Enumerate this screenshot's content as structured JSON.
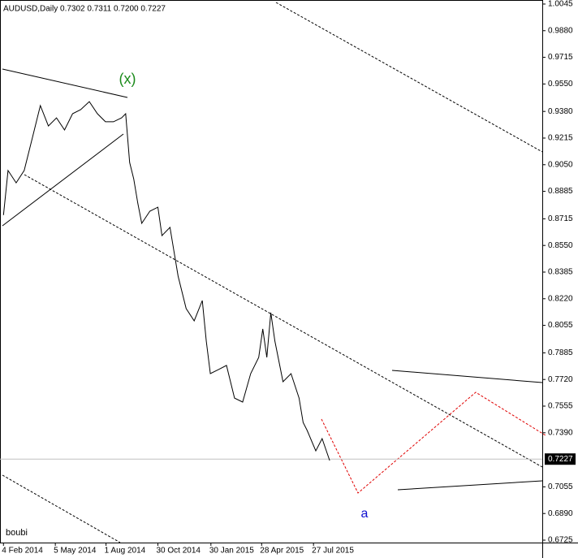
{
  "chart_data": {
    "type": "line",
    "title": "AUDUSD,Daily  0.7302 0.7311 0.7200 0.7227",
    "x": [
      "2014-02-04",
      "2014-02-12",
      "2014-02-26",
      "2014-03-12",
      "2014-03-26",
      "2014-04-09",
      "2014-04-23",
      "2014-05-07",
      "2014-05-21",
      "2014-06-04",
      "2014-06-18",
      "2014-07-03",
      "2014-07-17",
      "2014-07-31",
      "2014-08-14",
      "2014-08-28",
      "2014-09-04",
      "2014-09-11",
      "2014-09-18",
      "2014-09-25",
      "2014-10-02",
      "2014-10-16",
      "2014-10-30",
      "2014-11-06",
      "2014-11-20",
      "2014-11-27",
      "2014-12-04",
      "2014-12-18",
      "2015-01-01",
      "2015-01-15",
      "2015-01-22",
      "2015-01-29",
      "2015-02-12",
      "2015-02-26",
      "2015-03-12",
      "2015-03-26",
      "2015-04-09",
      "2015-04-23",
      "2015-04-30",
      "2015-05-07",
      "2015-05-14",
      "2015-05-21",
      "2015-06-04",
      "2015-06-18",
      "2015-07-02",
      "2015-07-09",
      "2015-07-16",
      "2015-07-31",
      "2015-08-11",
      "2015-08-24"
    ],
    "values": [
      0.8738,
      0.9014,
      0.8938,
      0.9014,
      0.9215,
      0.9416,
      0.929,
      0.934,
      0.9265,
      0.9366,
      0.9391,
      0.9441,
      0.9366,
      0.9316,
      0.9316,
      0.934,
      0.9366,
      0.9064,
      0.8963,
      0.8813,
      0.8687,
      0.8762,
      0.8787,
      0.8611,
      0.8662,
      0.851,
      0.836,
      0.8159,
      0.8083,
      0.8209,
      0.7958,
      0.7756,
      0.7781,
      0.7807,
      0.7605,
      0.758,
      0.7756,
      0.7857,
      0.8033,
      0.7857,
      0.8134,
      0.7958,
      0.7706,
      0.7756,
      0.7605,
      0.7454,
      0.7404,
      0.7278,
      0.7354,
      0.7218
    ],
    "color": "#000000",
    "xlim": [
      "2014-01-29",
      "2016-08-27"
    ],
    "xticks": [
      {
        "value": "2014-02-04",
        "label": "4 Feb 2014"
      },
      {
        "value": "2014-05-05",
        "label": "5 May 2014"
      },
      {
        "value": "2014-08-01",
        "label": "1 Aug 2014"
      },
      {
        "value": "2014-10-30",
        "label": "30 Oct 2014"
      },
      {
        "value": "2015-01-30",
        "label": "30 Jan 2015"
      },
      {
        "value": "2015-04-28",
        "label": "28 Apr 2015"
      },
      {
        "value": "2015-07-27",
        "label": "27 Jul 2015"
      }
    ],
    "ylim": [
      0.671,
      1.007
    ],
    "yticks": [
      1.0045,
      {
        "value": 0.988,
        "label": "0.9880"
      },
      0.9715,
      {
        "value": 0.955,
        "label": "0.9550"
      },
      {
        "value": 0.938,
        "label": "0.9380"
      },
      0.9215,
      {
        "value": 0.905,
        "label": "0.9050"
      },
      0.8885,
      0.8715,
      {
        "value": 0.855,
        "label": "0.8550"
      },
      0.8385,
      {
        "value": 0.822,
        "label": "0.8220"
      },
      0.8055,
      0.7885,
      {
        "value": 0.772,
        "label": "0.7720"
      },
      0.7555,
      {
        "value": 0.739,
        "label": "0.7390"
      },
      0.7055,
      {
        "value": 0.689,
        "label": "0.6890"
      },
      0.6725
    ],
    "current_price": 0.7227,
    "grid": false,
    "annotations": {
      "wave_x": "(x)",
      "wave_a": "a",
      "author": "boubi"
    }
  }
}
